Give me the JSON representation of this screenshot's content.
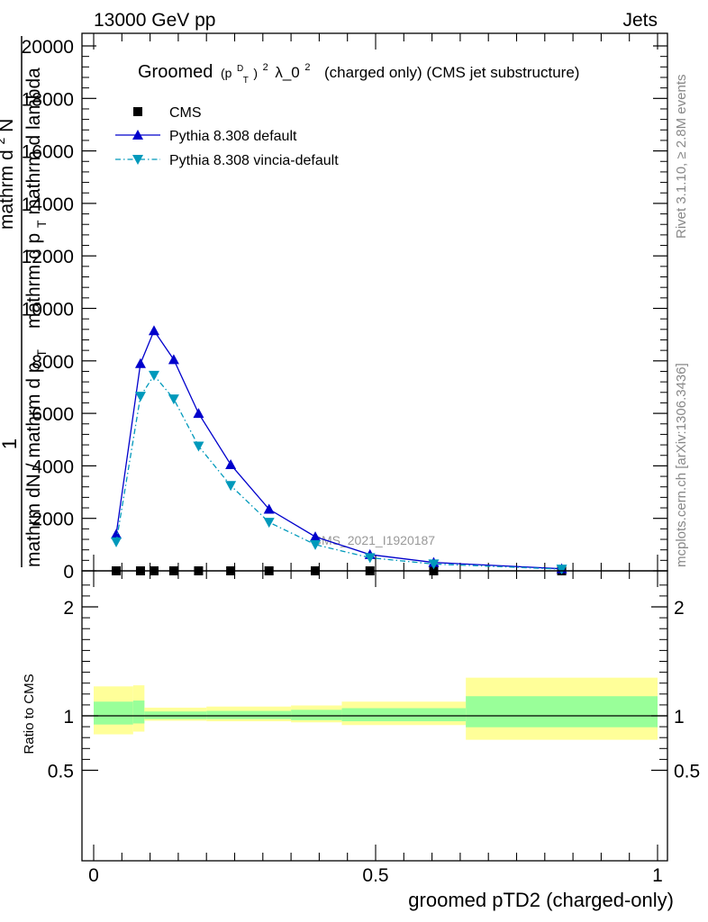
{
  "header": {
    "energy_label": "13000 GeV pp",
    "category_label": "Jets"
  },
  "side_labels": {
    "rivet": "Rivet 3.1.10, ≥ 2.8M events",
    "mcplots": "mcplots.cern.ch [arXiv:1306.3436]"
  },
  "chart_data": [
    {
      "type": "line",
      "title": {
        "prefix": "Groomed",
        "p": "(p",
        "sup_d": "D",
        "sub_t": "T",
        "close": ")",
        "sup_2": "2",
        "lambda": "λ_0",
        "sup_2b": "2",
        "suffix": "(charged only) (CMS jet substructure)"
      },
      "ylabel": {
        "one": "1",
        "denominator": "mathrm dN / mathrm d p",
        "denominator_sub": "T",
        "numerator_overlay": "mathrm d",
        "numerator_sup": "2",
        "numerator_rest": "N",
        "numerator_line2": "mathrm d p",
        "numerator_line2_sub": "T",
        "numerator_line2_rest": "mathrm d lambda"
      },
      "watermark": "CMS_2021_I1920187",
      "ylim": [
        0,
        20500
      ],
      "yticks": [
        0,
        2000,
        4000,
        6000,
        8000,
        10000,
        12000,
        14000,
        16000,
        18000,
        20000
      ],
      "ytick_labels": [
        "0",
        "2000",
        "4000",
        "6000",
        "8000",
        "10000",
        "12000",
        "14000",
        "16000",
        "18000",
        "20000"
      ],
      "xlim": [
        0,
        1
      ],
      "legend": [
        {
          "label": "CMS",
          "marker": "square",
          "color": "#000000"
        },
        {
          "label": "Pythia 8.308 default",
          "marker": "triangle-up",
          "color": "#0000cc"
        },
        {
          "label": "Pythia 8.308 vincia-default",
          "marker": "triangle-down",
          "color": "#0099bb"
        }
      ],
      "series": [
        {
          "name": "CMS",
          "x": [
            0.04,
            0.083,
            0.107,
            0.142,
            0.186,
            0.243,
            0.311,
            0.393,
            0.49,
            0.603,
            0.83
          ],
          "y": [
            0,
            0,
            0,
            0,
            0,
            0,
            0,
            0,
            0,
            0,
            0
          ]
        },
        {
          "name": "Pythia 8.308 default",
          "x": [
            0.04,
            0.083,
            0.107,
            0.142,
            0.186,
            0.243,
            0.311,
            0.393,
            0.49,
            0.603,
            0.83
          ],
          "y": [
            1400,
            7900,
            9150,
            8050,
            6000,
            4050,
            2350,
            1300,
            620,
            320,
            80
          ]
        },
        {
          "name": "Pythia 8.308 vincia-default",
          "x": [
            0.04,
            0.083,
            0.107,
            0.142,
            0.186,
            0.243,
            0.311,
            0.393,
            0.49,
            0.603,
            0.83
          ],
          "y": [
            1100,
            6650,
            7450,
            6550,
            4750,
            3250,
            1850,
            1000,
            500,
            260,
            65
          ]
        }
      ]
    },
    {
      "type": "area",
      "ylabel": "Ratio to CMS",
      "xlabel": "groomed pTD2 (charged-only)",
      "ylim": [
        0.4,
        2.3
      ],
      "ytick_labels": {
        "v2": "2",
        "v1": "1",
        "v05": "0.5"
      },
      "xlim": [
        0,
        1
      ],
      "xtick_labels": {
        "v0": "0",
        "v05": "0.5",
        "v1": "1"
      },
      "bands": {
        "bins": [
          [
            0.0,
            0.07
          ],
          [
            0.07,
            0.09
          ],
          [
            0.09,
            0.2
          ],
          [
            0.2,
            0.35
          ],
          [
            0.35,
            0.44
          ],
          [
            0.44,
            0.66
          ],
          [
            0.66,
            1.0
          ]
        ],
        "inner_green": [
          [
            0.92,
            1.13
          ],
          [
            0.93,
            1.14
          ],
          [
            0.97,
            1.04
          ],
          [
            0.97,
            1.045
          ],
          [
            0.96,
            1.055
          ],
          [
            0.95,
            1.07
          ],
          [
            0.895,
            1.18
          ]
        ],
        "outer_yellow": [
          [
            0.83,
            1.27
          ],
          [
            0.855,
            1.28
          ],
          [
            0.955,
            1.075
          ],
          [
            0.95,
            1.085
          ],
          [
            0.94,
            1.095
          ],
          [
            0.915,
            1.13
          ],
          [
            0.78,
            1.35
          ]
        ],
        "inner_color": "#99ff99",
        "outer_color": "#ffff99"
      },
      "reference_line": 1
    }
  ]
}
